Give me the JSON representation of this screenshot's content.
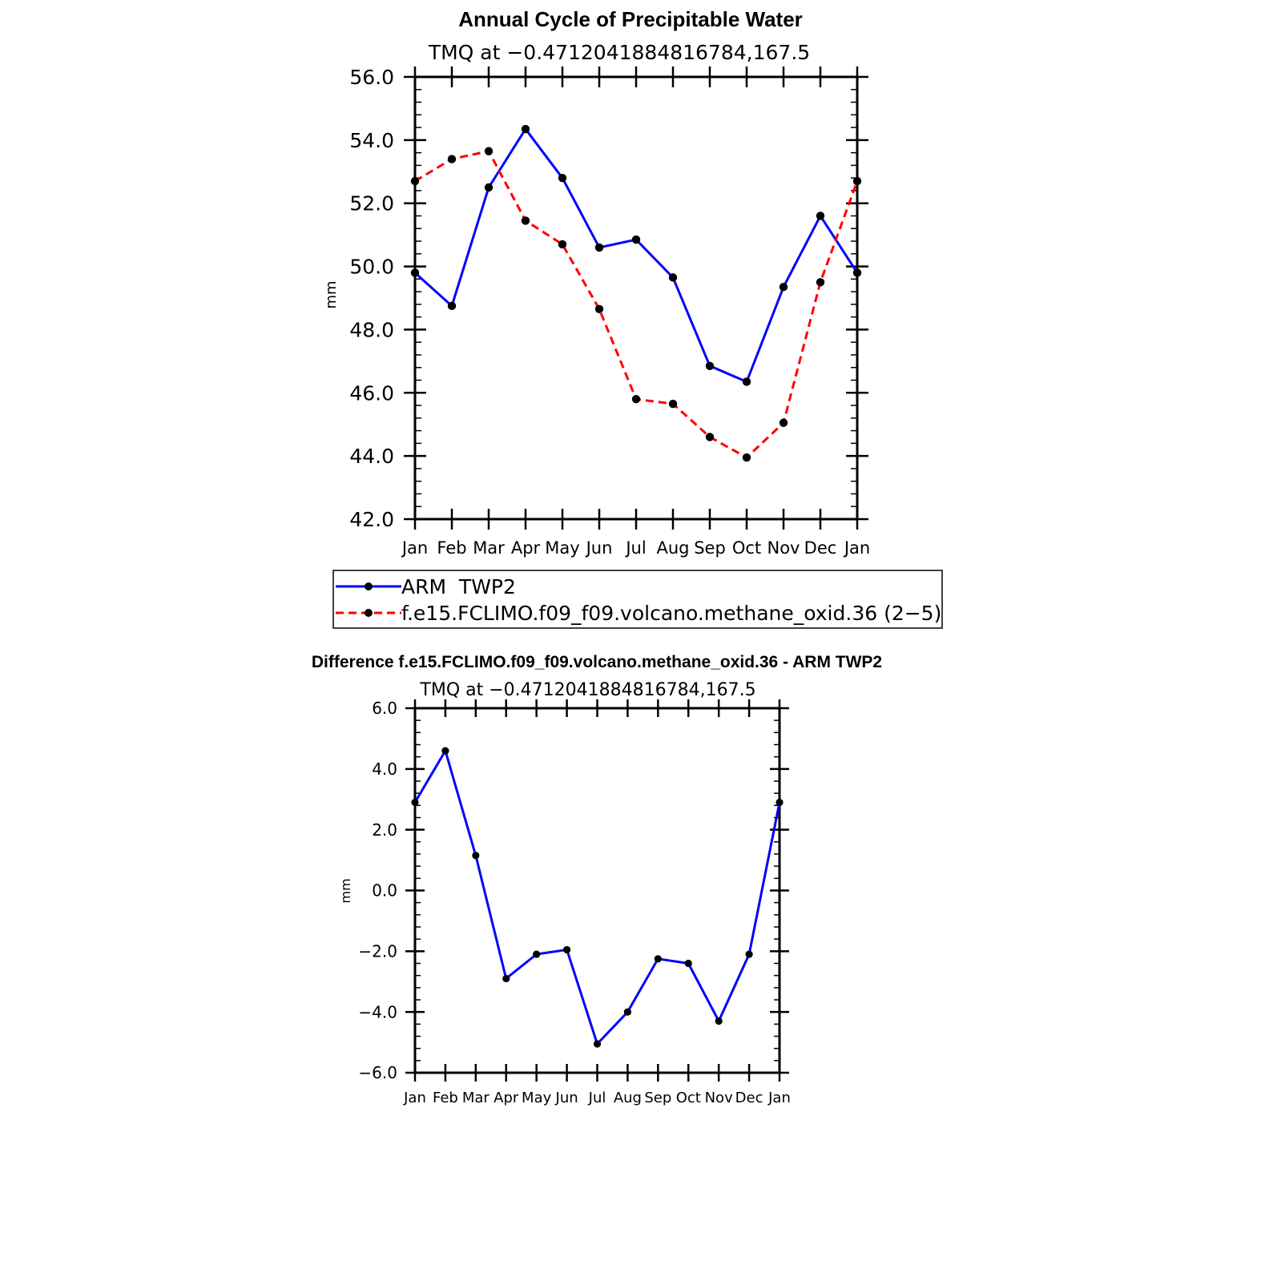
{
  "chart_data": [
    {
      "type": "line",
      "title": "Annual Cycle of Precipitable Water",
      "subtitle": "TMQ  at  −0.4712041884816784,167.5",
      "xlabel": "",
      "ylabel": "mm",
      "ylim": [
        42.0,
        56.0
      ],
      "yticks": [
        "42.0",
        "44.0",
        "46.0",
        "48.0",
        "50.0",
        "52.0",
        "54.0",
        "56.0"
      ],
      "categories": [
        "Jan",
        "Feb",
        "Mar",
        "Apr",
        "May",
        "Jun",
        "Jul",
        "Aug",
        "Sep",
        "Oct",
        "Nov",
        "Dec",
        "Jan"
      ],
      "grid": false,
      "legend_position": "bottom",
      "series": [
        {
          "name": "ARM  TWP2",
          "color": "#0000ff",
          "dash": "solid",
          "values": [
            49.8,
            48.75,
            52.5,
            54.35,
            52.8,
            50.6,
            50.85,
            49.65,
            46.85,
            46.35,
            49.35,
            51.6,
            49.8
          ]
        },
        {
          "name": "f.e15.FCLIMO.f09_f09.volcano.methane_oxid.36 (2−5)",
          "color": "#ff0000",
          "dash": "dashed",
          "values": [
            52.7,
            53.4,
            53.65,
            51.45,
            50.7,
            48.65,
            45.8,
            45.65,
            44.6,
            43.95,
            45.05,
            49.5,
            52.7
          ]
        }
      ]
    },
    {
      "type": "line",
      "title": "Difference f.e15.FCLIMO.f09_f09.volcano.methane_oxid.36 - ARM TWP2",
      "subtitle": "TMQ  at  −0.4712041884816784,167.5",
      "xlabel": "",
      "ylabel": "mm",
      "ylim": [
        -6.0,
        6.0
      ],
      "yticks": [
        "−6.0",
        "−4.0",
        "−2.0",
        "0.0",
        "2.0",
        "4.0",
        "6.0"
      ],
      "categories": [
        "Jan",
        "Feb",
        "Mar",
        "Apr",
        "May",
        "Jun",
        "Jul",
        "Aug",
        "Sep",
        "Oct",
        "Nov",
        "Dec",
        "Jan"
      ],
      "grid": false,
      "series": [
        {
          "color": "#0000ff",
          "dash": "solid",
          "values": [
            2.9,
            4.6,
            1.15,
            -2.9,
            -2.1,
            -1.95,
            -5.05,
            -4.0,
            -2.25,
            -2.4,
            -4.3,
            -2.1,
            2.9
          ]
        }
      ]
    }
  ]
}
